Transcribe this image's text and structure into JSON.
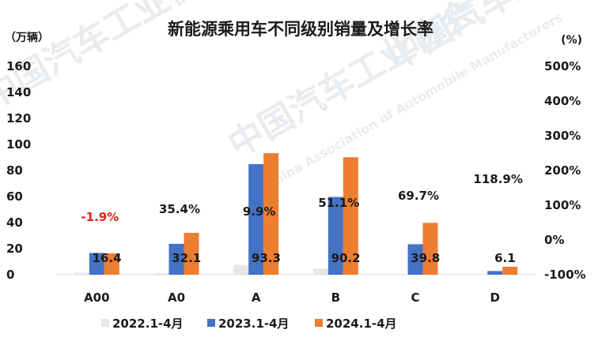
{
  "chart_data": {
    "type": "bar",
    "title": "新能源乘用车不同级别销量及增长率",
    "ylabel_left": "（万辆）",
    "ylabel_right": "(%)",
    "ylim_left": [
      0,
      160
    ],
    "yticks_left": [
      "160",
      "140",
      "120",
      "100",
      "80",
      "60",
      "40",
      "20",
      "0"
    ],
    "ylim_right": [
      -100,
      500
    ],
    "yticks_right": [
      "500%",
      "400%",
      "300%",
      "200%",
      "100%",
      "0%",
      "-100%"
    ],
    "categories": [
      "A00",
      "A0",
      "A",
      "B",
      "C",
      "D"
    ],
    "series": [
      {
        "name": "2022.1-4月",
        "color": "#e6e6e6",
        "values": [
          1.5,
          1.2,
          7.5,
          4.5,
          0.4,
          0.1
        ]
      },
      {
        "name": "2023.1-4月",
        "color": "#4472c4",
        "values": [
          16.7,
          23.7,
          84.9,
          59.7,
          23.4,
          2.8
        ]
      },
      {
        "name": "2024.1-4月",
        "color": "#ed7d31",
        "values": [
          16.4,
          32.1,
          93.3,
          90.2,
          39.8,
          6.1
        ]
      }
    ],
    "data_labels": [
      "16.4",
      "32.1",
      "93.3",
      "90.2",
      "39.8",
      "6.1"
    ],
    "growth_labels": [
      "-1.9%",
      "35.4%",
      "9.9%",
      "51.1%",
      "69.7%",
      "118.9%"
    ],
    "growth_colors": [
      "#e0211a",
      "#1a1a1a",
      "#1a1a1a",
      "#1a1a1a",
      "#1a1a1a",
      "#1a1a1a"
    ]
  },
  "watermark": {
    "cn": "中国汽车工业协会",
    "en": "China Association of Automobile Manufacturers"
  }
}
